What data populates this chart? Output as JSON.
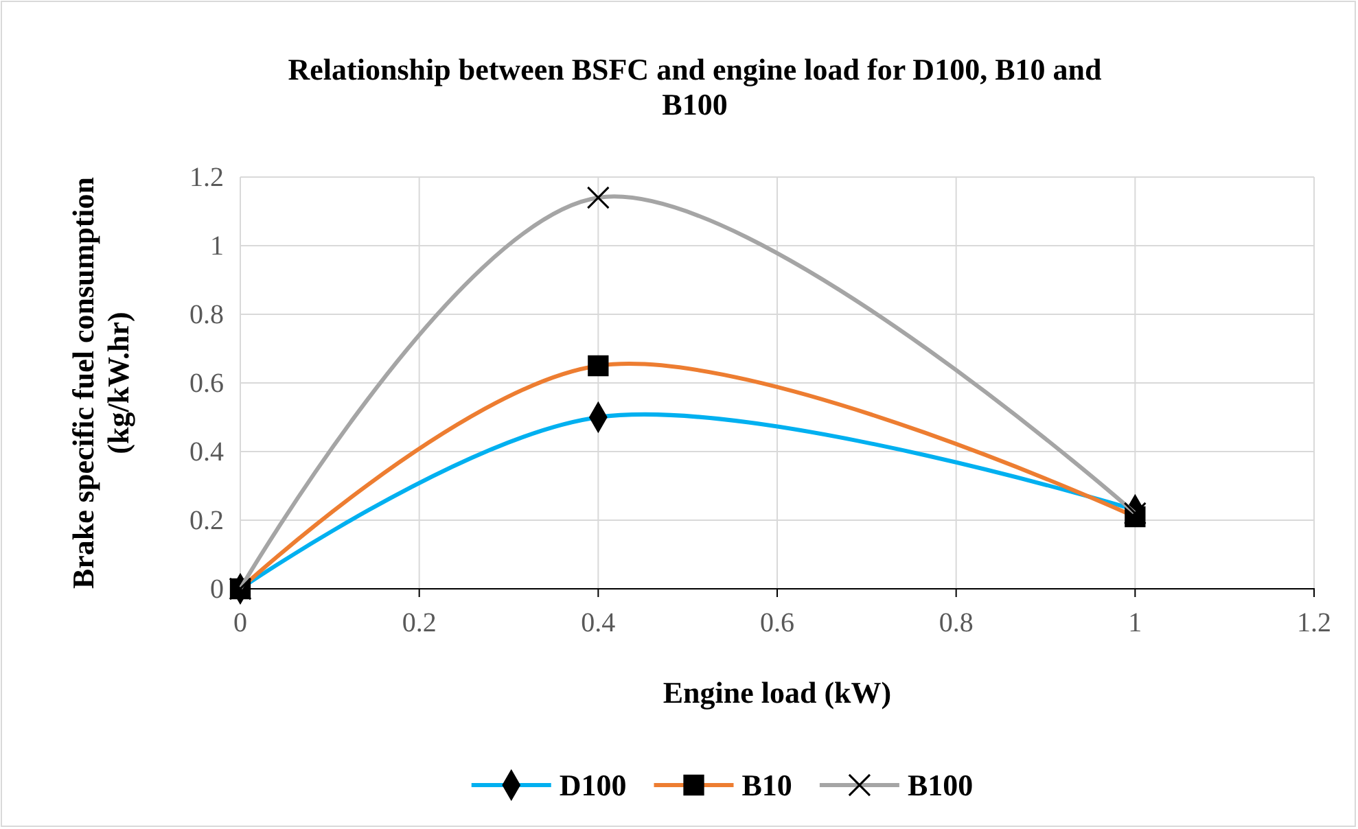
{
  "chart_data": {
    "type": "line",
    "title": "Relationship between BSFC and engine load for D100, B10 and B100",
    "xlabel": "Engine load (kW)",
    "ylabel": "Brake specific fuel consumption (kg/kW.hr)",
    "xlim": [
      0,
      1.2
    ],
    "xticks": [
      0,
      0.2,
      0.4,
      0.6,
      0.8,
      1,
      1.2
    ],
    "ylim": [
      0,
      1.2
    ],
    "yticks": [
      0,
      0.2,
      0.4,
      0.6,
      0.8,
      1,
      1.2
    ],
    "grid": true,
    "legend": "bottom",
    "line_style": "solid",
    "series": [
      {
        "name": "D100",
        "color": "#00b0f0",
        "marker": "diamond",
        "x": [
          0,
          0.4,
          1
        ],
        "values": [
          0,
          0.5,
          0.23
        ]
      },
      {
        "name": "B10",
        "color": "#ed7d31",
        "marker": "square",
        "x": [
          0,
          0.4,
          1
        ],
        "values": [
          0,
          0.65,
          0.21
        ]
      },
      {
        "name": "B100",
        "color": "#a5a5a5",
        "marker": "cross",
        "x": [
          0,
          0.4,
          1
        ],
        "values": [
          0,
          1.14,
          0.22
        ]
      }
    ]
  }
}
